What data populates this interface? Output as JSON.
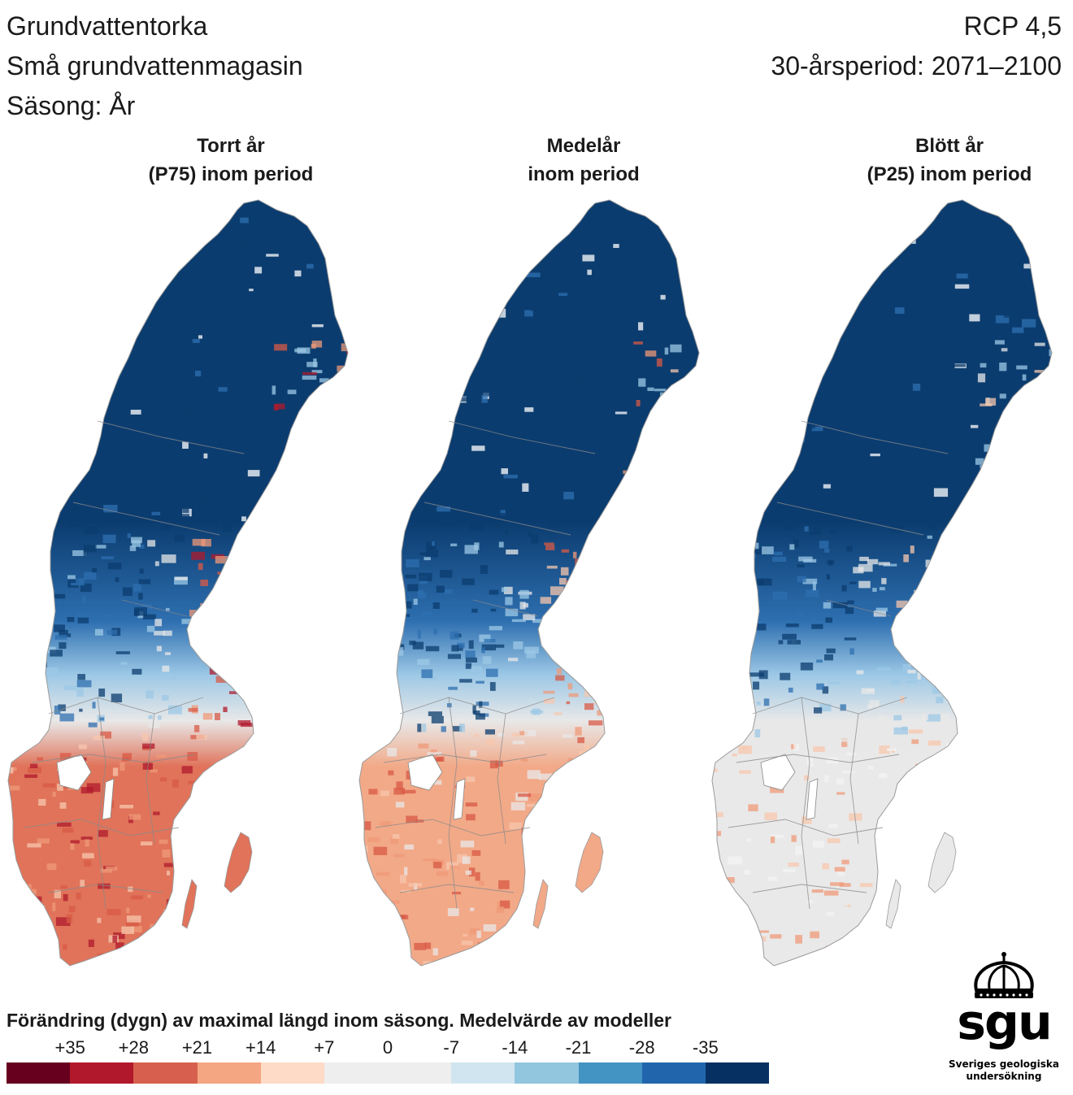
{
  "header": {
    "line1": "Grundvattentorka",
    "line2": "Små grundvattenmagasin",
    "line3": "Säsong: År",
    "scenario": "RCP 4,5",
    "period": "30-årsperiod: 2071–2100"
  },
  "panels": [
    {
      "title_line1": "Torrt år",
      "title_line2": "(P75) inom period",
      "north": "navy",
      "south": "red"
    },
    {
      "title_line1": "Medelår",
      "title_line2": "inom period",
      "north": "navy",
      "south": "salmon"
    },
    {
      "title_line1": "Blött år",
      "title_line2": "(P25) inom period",
      "north": "navy",
      "south": "grey"
    }
  ],
  "legend": {
    "title": "Förändring (dygn) av maximal längd inom säsong. Medelvärde av modeller",
    "labels": [
      "+35",
      "+28",
      "+21",
      "+14",
      "+7",
      "0",
      "-7",
      "-14",
      "-21",
      "-28",
      "-35"
    ],
    "colors": [
      "#67001f",
      "#b2182b",
      "#d6604d",
      "#f4a582",
      "#fddbc7",
      "#eeeeee",
      "#eeeeee",
      "#d1e5f0",
      "#92c5de",
      "#4393c3",
      "#2166ac",
      "#053061"
    ]
  },
  "logo": {
    "wordmark": "sgu",
    "subtitle_line1": "Sveriges geologiska",
    "subtitle_line2": "undersökning"
  }
}
